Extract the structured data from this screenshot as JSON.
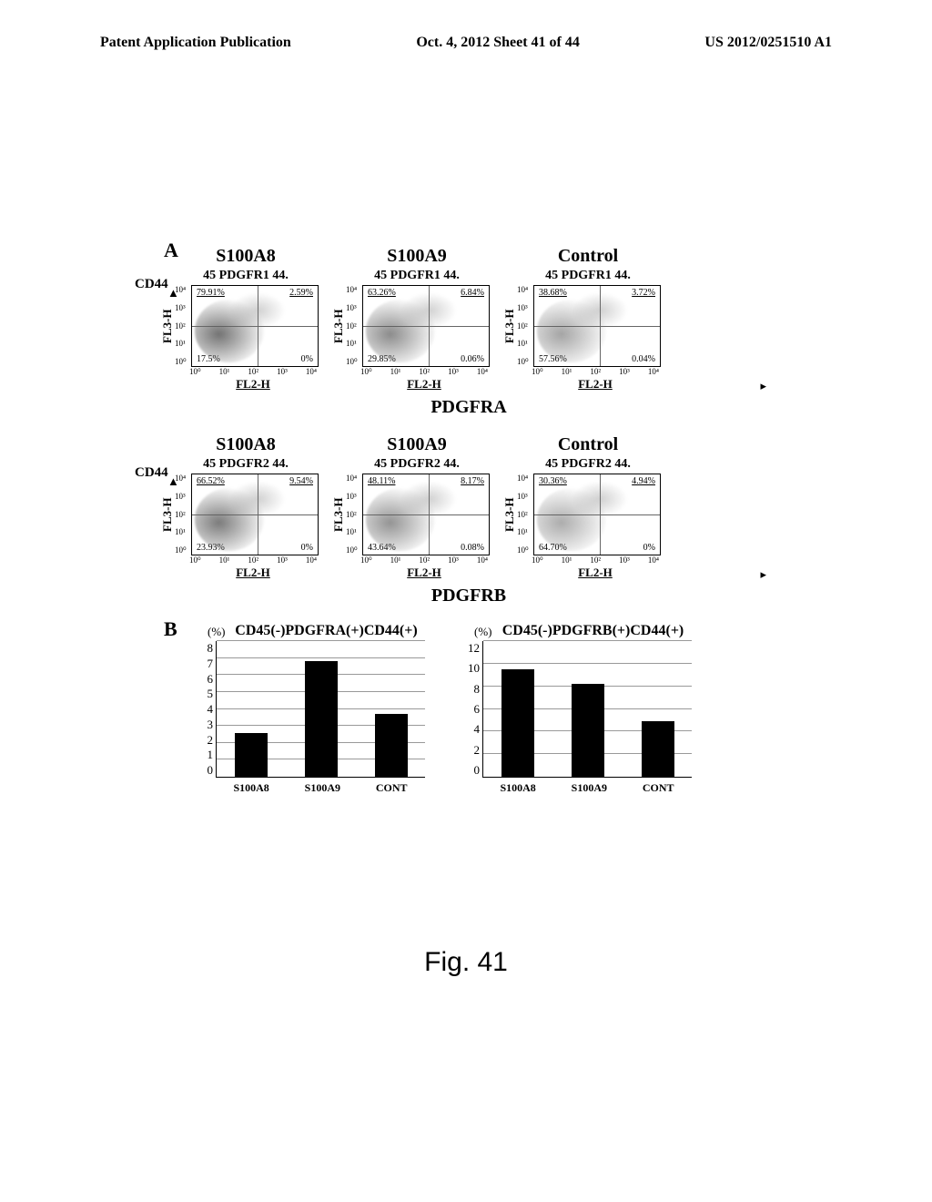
{
  "header": {
    "left": "Patent Application Publication",
    "center": "Oct. 4, 2012  Sheet 41 of 44",
    "right": "US 2012/0251510 A1"
  },
  "panelA": {
    "label": "A",
    "cd44_label": "CD44",
    "rows": [
      {
        "axis_title": "PDGFRA",
        "blocks": [
          {
            "col_title": "S100A8",
            "ident": "45 PDGFR1 44.",
            "quads": {
              "ul": "79.91%",
              "ur": "2.59%",
              "ll": "17.5%",
              "lr": "0%"
            },
            "y_label": "FL3-H",
            "x_label": "FL2-H",
            "cloud_density": 0.85,
            "has_cd44": true
          },
          {
            "col_title": "S100A9",
            "ident": "45 PDGFR1 44.",
            "quads": {
              "ul": "63.26%",
              "ur": "6.84%",
              "ll": "29.85%",
              "lr": "0.06%"
            },
            "y_label": "FL3-H",
            "x_label": "FL2-H",
            "cloud_density": 0.7
          },
          {
            "col_title": "Control",
            "ident": "45 PDGFR1 44.",
            "quads": {
              "ul": "38.68%",
              "ur": "3.72%",
              "ll": "57.56%",
              "lr": "0.04%"
            },
            "y_label": "FL3-H",
            "x_label": "FL2-H",
            "cloud_density": 0.55
          }
        ]
      },
      {
        "axis_title": "PDGFRB",
        "blocks": [
          {
            "col_title": "S100A8",
            "ident": "45 PDGFR2 44.",
            "quads": {
              "ul": "66.52%",
              "ur": "9.54%",
              "ll": "23.93%",
              "lr": "0%"
            },
            "y_label": "FL3-H",
            "x_label": "FL2-H",
            "cloud_density": 0.8,
            "has_cd44": true
          },
          {
            "col_title": "S100A9",
            "ident": "45 PDGFR2 44.",
            "quads": {
              "ul": "48.11%",
              "ur": "8.17%",
              "ll": "43.64%",
              "lr": "0.08%"
            },
            "y_label": "FL3-H",
            "x_label": "FL2-H",
            "cloud_density": 0.65
          },
          {
            "col_title": "Control",
            "ident": "45 PDGFR2 44.",
            "quads": {
              "ul": "30.36%",
              "ur": "4.94%",
              "ll": "64.70%",
              "lr": "0%"
            },
            "y_label": "FL3-H",
            "x_label": "FL2-H",
            "cloud_density": 0.5
          }
        ]
      }
    ],
    "xticks": [
      "10⁰",
      "10¹",
      "10²",
      "10³",
      "10⁴"
    ],
    "yticks": [
      "10⁰",
      "10¹",
      "10²",
      "10³",
      "10⁴"
    ],
    "hline_pct": 50,
    "vline_pct": 52
  },
  "panelB": {
    "label": "B",
    "pct_symbol": "(%)",
    "charts": [
      {
        "title": "CD45(-)PDGFRA(+)CD44(+)",
        "ymax": 8,
        "ytick_step": 1,
        "categories": [
          "S100A8",
          "S100A9",
          "CONT"
        ],
        "values": [
          2.6,
          6.8,
          3.7
        ],
        "bar_color": "#000000",
        "grid_color": "#999999"
      },
      {
        "title": "CD45(-)PDGFRB(+)CD44(+)",
        "ymax": 12,
        "ytick_step": 2,
        "categories": [
          "S100A8",
          "S100A9",
          "CONT"
        ],
        "values": [
          9.5,
          8.2,
          4.9
        ],
        "bar_color": "#000000",
        "grid_color": "#999999"
      }
    ]
  },
  "figure_caption": "Fig. 41",
  "colors": {
    "text": "#000000",
    "background": "#ffffff",
    "scatter_dots": "#6a6a6a"
  }
}
